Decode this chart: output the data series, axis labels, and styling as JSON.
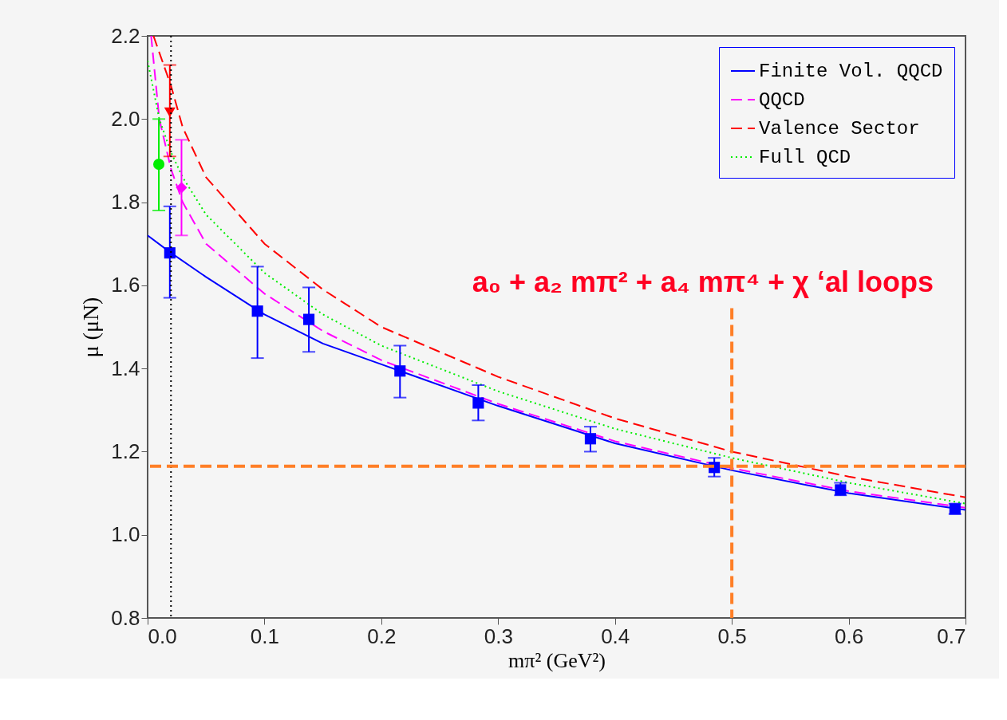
{
  "chart_data": {
    "type": "line",
    "xlabel": "mπ² (GeV²)",
    "ylabel": "μ (μN)",
    "xlim": [
      0,
      0.7
    ],
    "ylim": [
      0.8,
      2.2
    ],
    "xticks": [
      {
        "value": 0,
        "label": "0.0"
      },
      0.1,
      0.2,
      0.3,
      0.4,
      0.5,
      0.6,
      0.7
    ],
    "yticks": [
      0.8,
      {
        "value": 1,
        "label": "1.0"
      },
      1.2,
      1.4,
      1.6,
      1.8,
      {
        "value": 2,
        "label": "2.0"
      },
      2.2
    ],
    "grid": false,
    "legend": "top right",
    "series": [
      {
        "name": "Finite Vol. QQCD",
        "color": "#0000ff",
        "line_style": "solid",
        "x": [
          0,
          0.019,
          0.05,
          0.1,
          0.15,
          0.2,
          0.3,
          0.4,
          0.5,
          0.6,
          0.7
        ],
        "values": [
          1.72,
          1.68,
          1.62,
          1.53,
          1.46,
          1.41,
          1.31,
          1.22,
          1.155,
          1.1,
          1.06
        ]
      },
      {
        "name": "QQCD",
        "color": "#ff00ff",
        "line_style": "dashed",
        "x": [
          0.003,
          0.01,
          0.02,
          0.03,
          0.05,
          0.1,
          0.15,
          0.2,
          0.3,
          0.4,
          0.5,
          0.6,
          0.7
        ],
        "values": [
          2.2,
          2.0,
          1.88,
          1.8,
          1.7,
          1.58,
          1.49,
          1.42,
          1.315,
          1.225,
          1.16,
          1.105,
          1.065
        ]
      },
      {
        "name": "Valence Sector",
        "color": "#ff0000",
        "line_style": "dashed",
        "x": [
          0.005,
          0.02,
          0.03,
          0.05,
          0.1,
          0.15,
          0.2,
          0.3,
          0.4,
          0.5,
          0.6,
          0.7
        ],
        "values": [
          2.2,
          2.08,
          1.98,
          1.86,
          1.7,
          1.59,
          1.5,
          1.38,
          1.28,
          1.2,
          1.14,
          1.09
        ]
      },
      {
        "name": "Full QCD",
        "color": "#00ee00",
        "line_style": "dotted",
        "x": [
          0,
          0.01,
          0.02,
          0.03,
          0.05,
          0.1,
          0.15,
          0.2,
          0.3,
          0.4,
          0.5,
          0.6,
          0.7
        ],
        "values": [
          2.14,
          2.0,
          1.92,
          1.86,
          1.77,
          1.63,
          1.53,
          1.455,
          1.345,
          1.255,
          1.185,
          1.125,
          1.075
        ]
      },
      {
        "type": "scatter",
        "color": "#0000ff",
        "marker": "square",
        "x": [
          0.019,
          0.094,
          0.138,
          0.216,
          0.283,
          0.379,
          0.485,
          0.593,
          0.691
        ],
        "values": [
          1.678,
          1.538,
          1.518,
          1.394,
          1.317,
          1.231,
          1.162,
          1.108,
          1.062
        ],
        "errors": [
          [
            1.57,
            1.79
          ],
          [
            1.425,
            1.645
          ],
          [
            1.44,
            1.595
          ],
          [
            1.33,
            1.455
          ],
          [
            1.275,
            1.36
          ],
          [
            1.2,
            1.26
          ],
          [
            1.14,
            1.185
          ],
          [
            1.095,
            1.125
          ],
          [
            1.05,
            1.075
          ]
        ]
      },
      {
        "type": "scatter",
        "color": "#ff0000",
        "marker": "triangle",
        "x": [
          0.019
        ],
        "values": [
          2.016
        ],
        "errors": [
          [
            1.91,
            2.13
          ]
        ]
      },
      {
        "type": "scatter",
        "color": "#00ee00",
        "marker": "circle",
        "x": [
          0.0096
        ],
        "values": [
          1.891
        ],
        "errors": [
          [
            1.78,
            2.0
          ]
        ]
      },
      {
        "type": "scatter",
        "color": "#ff00ff",
        "marker": "diamond",
        "x": [
          0.029
        ],
        "values": [
          1.835
        ],
        "errors": [
          [
            1.72,
            1.95
          ]
        ]
      },
      {
        "type": "line",
        "color": "#ff7f27",
        "line_style": "dashed",
        "x": [
          0.5,
          0.5
        ],
        "values": [
          1.545,
          0.8
        ]
      }
    ],
    "ref_lines": [
      {
        "axis": "x",
        "value": 0.02,
        "color": "#000000",
        "line_style": "dotted"
      },
      {
        "axis": "y",
        "value": 1.165,
        "color": "#ff7f27",
        "line_style": "dashed"
      }
    ],
    "annotations": [
      "a₀ + a₂ mπ² + a₄ mπ⁴ + χ ‘al loops"
    ]
  }
}
